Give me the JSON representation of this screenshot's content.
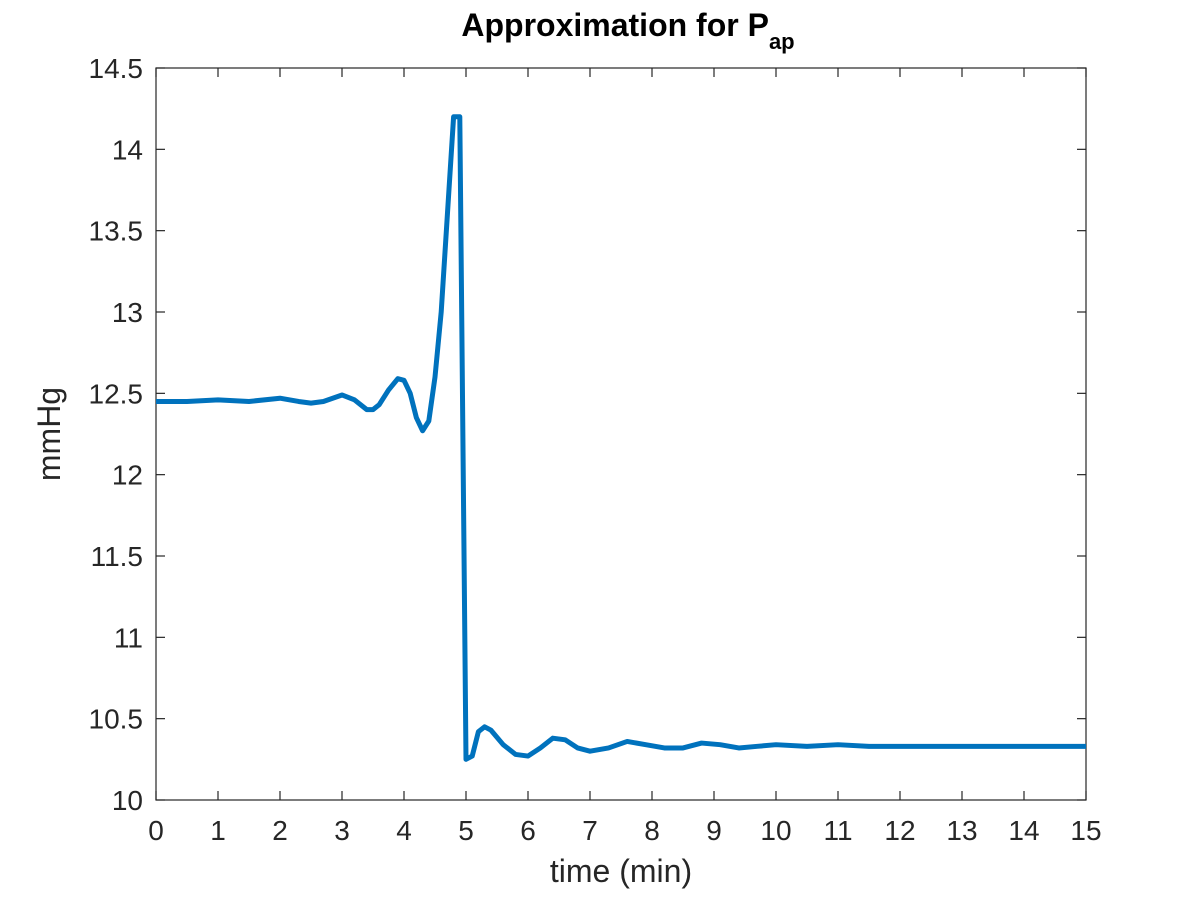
{
  "chart_data": {
    "type": "line",
    "title": "Approximation for P",
    "title_subscript": "ap",
    "xlabel": "time (min)",
    "ylabel": "mmHg",
    "xlim": [
      0,
      15
    ],
    "ylim": [
      10,
      14.5
    ],
    "xticks": [
      0,
      1,
      2,
      3,
      4,
      5,
      6,
      7,
      8,
      9,
      10,
      11,
      12,
      13,
      14,
      15
    ],
    "xtick_labels": [
      "0",
      "1",
      "2",
      "3",
      "4",
      "5",
      "6",
      "7",
      "8",
      "9",
      "10",
      "11",
      "12",
      "13",
      "14",
      "15"
    ],
    "yticks": [
      10,
      10.5,
      11,
      11.5,
      12,
      12.5,
      13,
      13.5,
      14,
      14.5
    ],
    "ytick_labels": [
      "10",
      "10.5",
      "11",
      "11.5",
      "12",
      "12.5",
      "13",
      "13.5",
      "14",
      "14.5"
    ],
    "grid": false,
    "box": true,
    "line_color": "#0072BD",
    "axis_color": "#262626",
    "series": [
      {
        "x": [
          0,
          0.5,
          1,
          1.5,
          2,
          2.3,
          2.5,
          2.7,
          3,
          3.2,
          3.4,
          3.5,
          3.6,
          3.75,
          3.9,
          4.0,
          4.1,
          4.2,
          4.3,
          4.4,
          4.5,
          4.6,
          4.7,
          4.8,
          4.9,
          5.0,
          5.1,
          5.2,
          5.3,
          5.4,
          5.6,
          5.8,
          6.0,
          6.2,
          6.4,
          6.6,
          6.8,
          7.0,
          7.3,
          7.6,
          7.9,
          8.2,
          8.5,
          8.8,
          9.1,
          9.4,
          9.7,
          10.0,
          10.5,
          11.0,
          11.5,
          12.0,
          12.5,
          13.0,
          13.5,
          14.0,
          14.5,
          15.0
        ],
        "y": [
          12.45,
          12.45,
          12.46,
          12.45,
          12.47,
          12.45,
          12.44,
          12.45,
          12.49,
          12.46,
          12.4,
          12.4,
          12.43,
          12.52,
          12.59,
          12.58,
          12.5,
          12.35,
          12.27,
          12.33,
          12.6,
          13.0,
          13.6,
          14.2,
          14.2,
          10.25,
          10.27,
          10.42,
          10.45,
          10.43,
          10.34,
          10.28,
          10.27,
          10.32,
          10.38,
          10.37,
          10.32,
          10.3,
          10.32,
          10.36,
          10.34,
          10.32,
          10.32,
          10.35,
          10.34,
          10.32,
          10.33,
          10.34,
          10.33,
          10.34,
          10.33,
          10.33,
          10.33,
          10.33,
          10.33,
          10.33,
          10.33,
          10.33
        ]
      }
    ]
  }
}
